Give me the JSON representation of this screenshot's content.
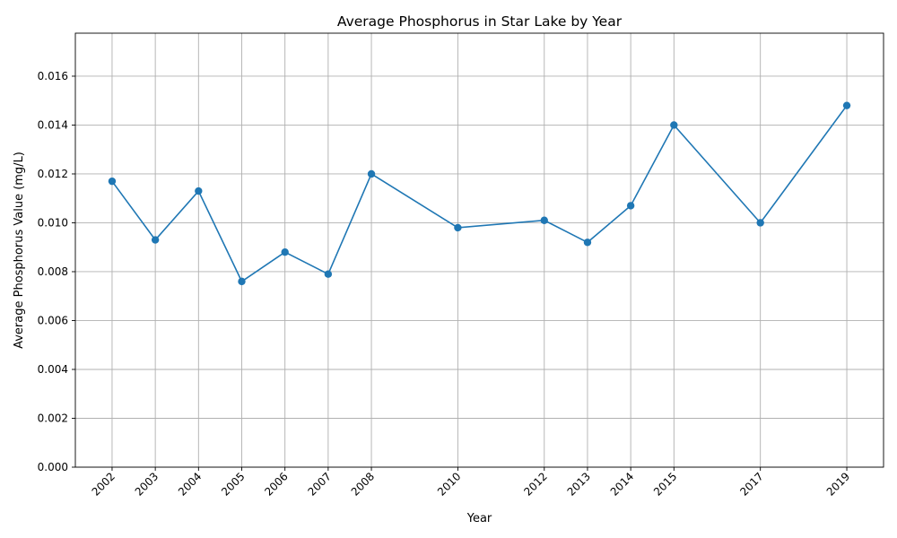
{
  "chart_data": {
    "type": "line",
    "title": "Average Phosphorus in Star Lake by Year",
    "xlabel": "Year",
    "ylabel": "Average Phosphorus Value (mg/L)",
    "x": [
      2002,
      2003,
      2004,
      2005,
      2006,
      2007,
      2008,
      2010,
      2012,
      2013,
      2014,
      2015,
      2017,
      2019
    ],
    "x_tick_labels": [
      "2002",
      "2003",
      "2004",
      "2005",
      "2006",
      "2007",
      "2008",
      "2010",
      "2012",
      "2013",
      "2014",
      "2015",
      "2017",
      "2019"
    ],
    "series": [
      {
        "values": [
          0.0117,
          0.0093,
          0.0113,
          0.0076,
          0.0088,
          0.0079,
          0.012,
          0.0098,
          0.0101,
          0.0092,
          0.0107,
          0.014,
          0.01,
          0.0148
        ],
        "color": "#1f77b4",
        "marker": "circle"
      }
    ],
    "y_ticks": [
      0.0,
      0.002,
      0.004,
      0.006,
      0.008,
      0.01,
      0.012,
      0.014,
      0.016
    ],
    "y_tick_labels": [
      "0.000",
      "0.002",
      "0.004",
      "0.006",
      "0.008",
      "0.010",
      "0.012",
      "0.014",
      "0.016"
    ],
    "xlim": [
      2001.15,
      2019.85
    ],
    "ylim": [
      0,
      0.01776
    ],
    "grid": true,
    "legend": "none"
  }
}
